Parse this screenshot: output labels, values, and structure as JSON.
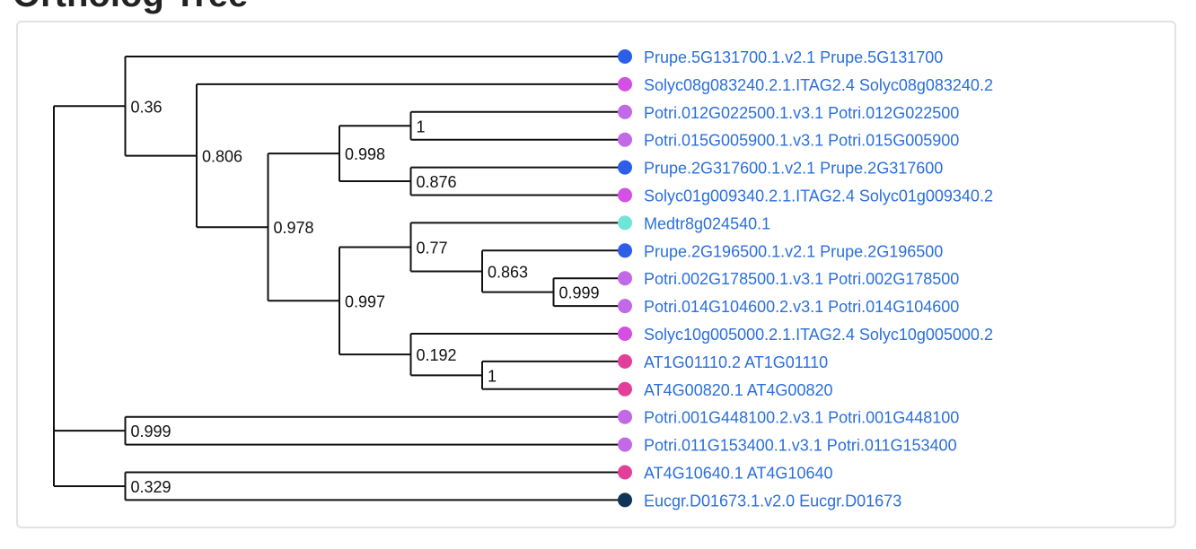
{
  "heading": "Ortholog Tree",
  "tree": {
    "colors": {
      "prunus": "#2d5ee8",
      "solanum": "#d44fe3",
      "populus": "#c169e6",
      "medicago": "#6ee6d6",
      "arabidopsis": "#e23f9a",
      "eucalyptus": "#0f3559",
      "label": "#2a6fdb"
    },
    "leaves": [
      {
        "label": "Prupe.5G131700.1.v2.1 Prupe.5G131700",
        "species": "prunus"
      },
      {
        "label": "Solyc08g083240.2.1.ITAG2.4 Solyc08g083240.2",
        "species": "solanum"
      },
      {
        "label": "Potri.012G022500.1.v3.1 Potri.012G022500",
        "species": "populus"
      },
      {
        "label": "Potri.015G005900.1.v3.1 Potri.015G005900",
        "species": "populus"
      },
      {
        "label": "Prupe.2G317600.1.v2.1 Prupe.2G317600",
        "species": "prunus"
      },
      {
        "label": "Solyc01g009340.2.1.ITAG2.4 Solyc01g009340.2",
        "species": "solanum"
      },
      {
        "label": "Medtr8g024540.1",
        "species": "medicago"
      },
      {
        "label": "Prupe.2G196500.1.v2.1 Prupe.2G196500",
        "species": "prunus"
      },
      {
        "label": "Potri.002G178500.1.v3.1 Potri.002G178500",
        "species": "populus"
      },
      {
        "label": "Potri.014G104600.2.v3.1 Potri.014G104600",
        "species": "populus"
      },
      {
        "label": "Solyc10g005000.2.1.ITAG2.4 Solyc10g005000.2",
        "species": "solanum"
      },
      {
        "label": "AT1G01110.2 AT1G01110",
        "species": "arabidopsis"
      },
      {
        "label": "AT4G00820.1 AT4G00820",
        "species": "arabidopsis"
      },
      {
        "label": "Potri.001G448100.2.v3.1 Potri.001G448100",
        "species": "populus"
      },
      {
        "label": "Potri.011G153400.1.v3.1 Potri.011G153400",
        "species": "populus"
      },
      {
        "label": "AT4G10640.1 AT4G10640",
        "species": "arabidopsis"
      },
      {
        "label": "Eucgr.D01673.1.v2.0 Eucgr.D01673",
        "species": "eucalyptus"
      }
    ],
    "root": {
      "children": [
        {
          "support": "0.36",
          "children": [
            {
              "leaf": 0
            },
            {
              "support": "0.806",
              "children": [
                {
                  "leaf": 1
                },
                {
                  "support": "0.978",
                  "children": [
                    {
                      "support": "0.998",
                      "children": [
                        {
                          "support": "1",
                          "children": [
                            {
                              "leaf": 2
                            },
                            {
                              "leaf": 3
                            }
                          ]
                        },
                        {
                          "support": "0.876",
                          "children": [
                            {
                              "leaf": 4
                            },
                            {
                              "leaf": 5
                            }
                          ]
                        }
                      ]
                    },
                    {
                      "support": "0.997",
                      "children": [
                        {
                          "support": "0.77",
                          "children": [
                            {
                              "leaf": 6
                            },
                            {
                              "support": "0.863",
                              "children": [
                                {
                                  "leaf": 7
                                },
                                {
                                  "support": "0.999",
                                  "children": [
                                    {
                                      "leaf": 8
                                    },
                                    {
                                      "leaf": 9
                                    }
                                  ]
                                }
                              ]
                            }
                          ]
                        },
                        {
                          "support": "0.192",
                          "children": [
                            {
                              "leaf": 10
                            },
                            {
                              "support": "1",
                              "children": [
                                {
                                  "leaf": 11
                                },
                                {
                                  "leaf": 12
                                }
                              ]
                            }
                          ]
                        }
                      ]
                    }
                  ]
                }
              ]
            }
          ]
        },
        {
          "support": "0.999",
          "children": [
            {
              "leaf": 13
            },
            {
              "leaf": 14
            }
          ]
        },
        {
          "support": "0.329",
          "children": [
            {
              "leaf": 15
            },
            {
              "leaf": 16
            }
          ]
        }
      ]
    }
  }
}
